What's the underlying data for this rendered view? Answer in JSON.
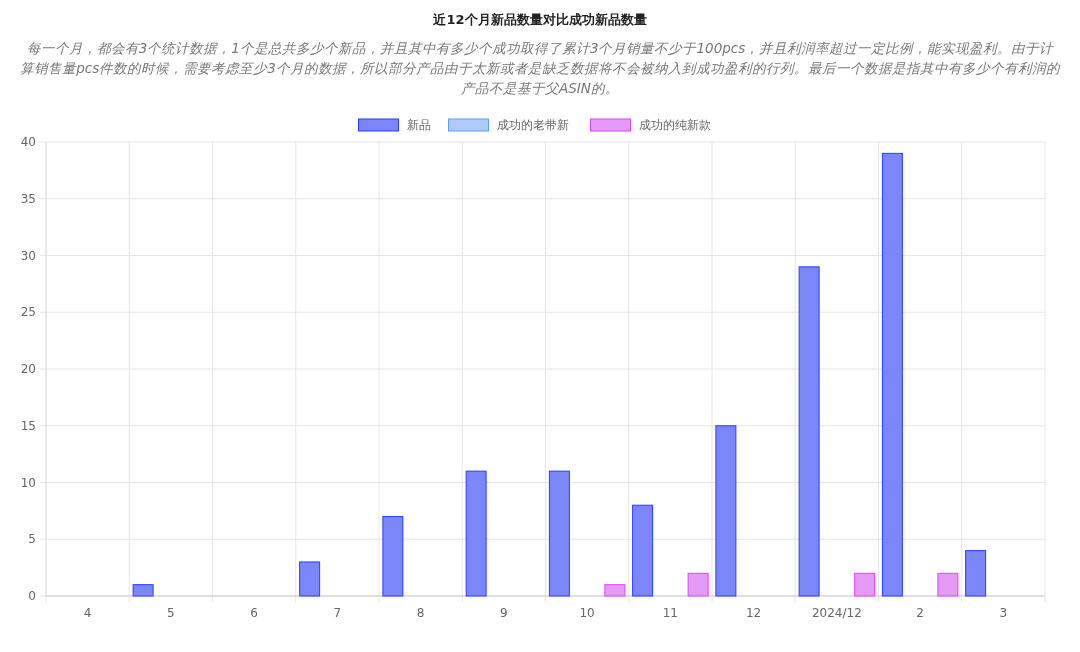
{
  "chart_data": {
    "type": "bar",
    "title": "近12个月新品数量对比成功新品数量",
    "subtitle": "每一个月，都会有3个统计数据，1个是总共多少个新品，并且其中有多少个成功取得了累计3个月销量不少于100pcs，并且利润率超过一定比例，能实现盈利。由于计算销售量pcs件数的时候，需要考虑至少3个月的数据，所以部分产品由于太新或者是缺乏数据将不会被纳入到成功盈利的行列。最后一个数据是指其中有多少个有利润的产品不是基于父ASIN的。",
    "categories": [
      "4",
      "5",
      "6",
      "7",
      "8",
      "9",
      "10",
      "11",
      "12",
      "2024/12",
      "2",
      "3"
    ],
    "series": [
      {
        "name": "新品",
        "color": "#7b86fb",
        "values": [
          0,
          1,
          0,
          3,
          7,
          11,
          11,
          8,
          15,
          29,
          39,
          4
        ]
      },
      {
        "name": "成功的老带新",
        "color": "#aecbfa",
        "values": [
          0,
          0,
          0,
          0,
          0,
          0,
          0,
          0,
          0,
          0,
          0,
          0
        ]
      },
      {
        "name": "成功的纯新款",
        "color": "#e59af5",
        "values": [
          0,
          0,
          0,
          0,
          0,
          0,
          1,
          2,
          0,
          2,
          2,
          0
        ]
      }
    ],
    "ylim": [
      0,
      40
    ],
    "yticks": [
      0,
      5,
      10,
      15,
      20,
      25,
      30,
      35,
      40
    ],
    "grid": true,
    "legend": "top"
  }
}
